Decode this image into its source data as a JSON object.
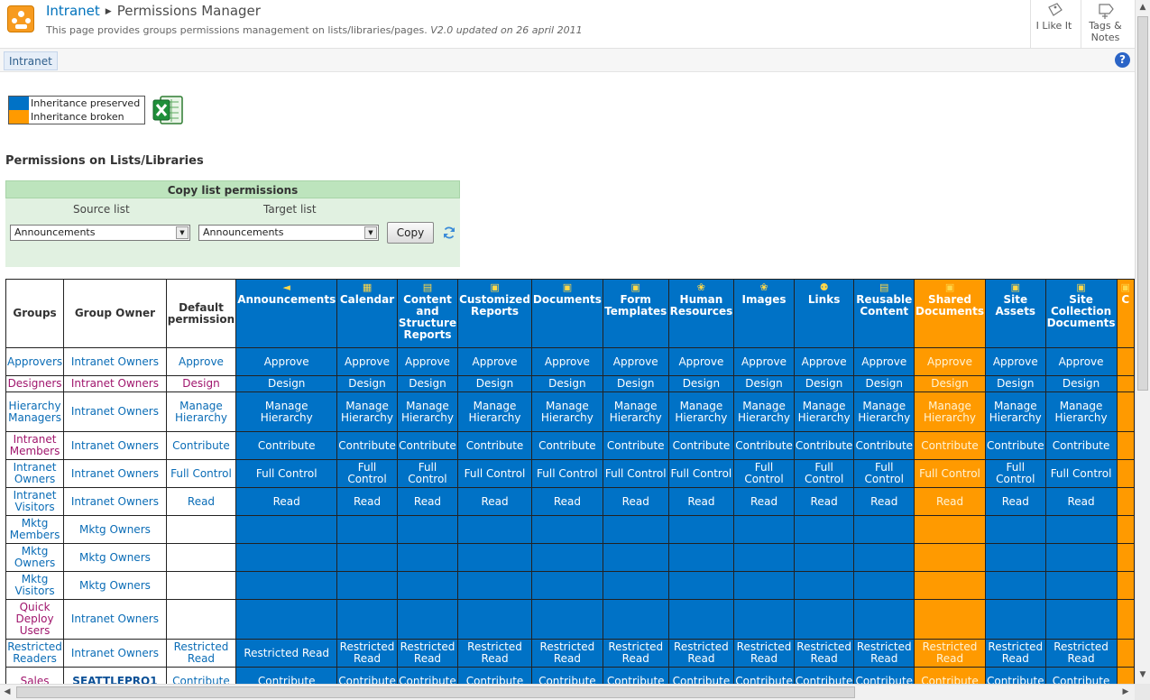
{
  "header": {
    "site": "Intranet",
    "page_title": "Permissions Manager",
    "description": "This page provides groups permissions management on lists/libraries/pages.",
    "version_note": "V2.0 updated on 26 april 2011",
    "like_label": "I Like It",
    "tags_label_1": "Tags &",
    "tags_label_2": "Notes"
  },
  "nav": {
    "tab": "Intranet",
    "help": "?"
  },
  "legend": {
    "preserved_label": "Inheritance preserved",
    "broken_label": "Inheritance broken",
    "preserved_color": "#0072c6",
    "broken_color": "#ff9a00"
  },
  "section_title": "Permissions on Lists/Libraries",
  "copy_panel": {
    "title": "Copy list permissions",
    "source_label": "Source list",
    "target_label": "Target list",
    "source_value": "Announcements",
    "target_value": "Announcements",
    "copy_button": "Copy"
  },
  "matrix": {
    "head_groups": "Groups",
    "head_owner": "Group Owner",
    "head_default": "Default permission",
    "columns": [
      {
        "label": "Announcements",
        "broken": false,
        "icon": "megaphone-icon"
      },
      {
        "label": "Calendar",
        "broken": false,
        "icon": "calendar-icon"
      },
      {
        "label": "Content and Structure Reports",
        "broken": false,
        "icon": "list-icon"
      },
      {
        "label": "Customized Reports",
        "broken": false,
        "icon": "library-icon"
      },
      {
        "label": "Documents",
        "broken": false,
        "icon": "library-icon"
      },
      {
        "label": "Form Templates",
        "broken": false,
        "icon": "library-icon"
      },
      {
        "label": "Human Resources",
        "broken": false,
        "icon": "picture-library-icon"
      },
      {
        "label": "Images",
        "broken": false,
        "icon": "picture-library-icon"
      },
      {
        "label": "Links",
        "broken": false,
        "icon": "links-icon"
      },
      {
        "label": "Reusable Content",
        "broken": false,
        "icon": "list-icon"
      },
      {
        "label": "Shared Documents",
        "broken": true,
        "icon": "library-icon"
      },
      {
        "label": "Site Assets",
        "broken": false,
        "icon": "library-icon"
      },
      {
        "label": "Site Collection Documents",
        "broken": false,
        "icon": "library-icon"
      },
      {
        "label": "C",
        "broken": true,
        "icon": "library-icon"
      }
    ],
    "rows": [
      {
        "group": "Approvers",
        "owner": "Intranet Owners",
        "default": "Approve",
        "perm": "Approve",
        "alt": false
      },
      {
        "group": "Designers",
        "owner": "Intranet Owners",
        "default": "Design",
        "perm": "Design",
        "alt": true
      },
      {
        "group": "Hierarchy Managers",
        "owner": "Intranet Owners",
        "default": "Manage Hierarchy",
        "perm": "Manage Hierarchy",
        "alt": false
      },
      {
        "group": "Intranet Members",
        "owner": "Intranet Owners",
        "default": "Contribute",
        "perm": "Contribute",
        "alt": false,
        "group_alt": true
      },
      {
        "group": "Intranet Owners",
        "owner": "Intranet Owners",
        "default": "Full Control",
        "perm": "Full Control",
        "alt": false
      },
      {
        "group": "Intranet Visitors",
        "owner": "Intranet Owners",
        "default": "Read",
        "perm": "Read",
        "alt": false
      },
      {
        "group": "Mktg Members",
        "owner": "Mktg Owners",
        "default": "",
        "perm": "",
        "alt": false
      },
      {
        "group": "Mktg Owners",
        "owner": "Mktg Owners",
        "default": "",
        "perm": "",
        "alt": false
      },
      {
        "group": "Mktg Visitors",
        "owner": "Mktg Owners",
        "default": "",
        "perm": "",
        "alt": false
      },
      {
        "group": "Quick Deploy Users",
        "owner": "Intranet Owners",
        "default": "",
        "perm": "",
        "alt": false,
        "group_alt": true
      },
      {
        "group": "Restricted Readers",
        "owner": "Intranet Owners",
        "default": "Restricted Read",
        "perm": "Restricted Read",
        "alt": false
      },
      {
        "group": "Sales",
        "owner": "SEATTLEPRO1",
        "default": "Contribute",
        "perm": "Contribute",
        "alt": false,
        "group_alt": true,
        "owner_bold": true
      }
    ]
  }
}
